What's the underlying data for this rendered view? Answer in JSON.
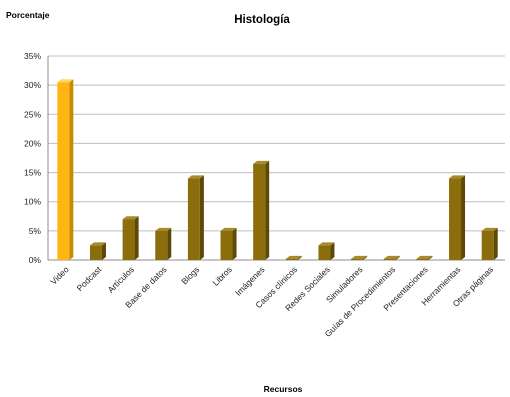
{
  "chart_data": {
    "type": "bar",
    "title": "Histología",
    "ylabel": "Porcentaje",
    "xlabel": "Recursos",
    "ylim": [
      0,
      35
    ],
    "yticks": [
      "0%",
      "5%",
      "10%",
      "15%",
      "20%",
      "25%",
      "30%",
      "35%"
    ],
    "grid": true,
    "categories": [
      "Video",
      "Podcast",
      "Artículos",
      "Base de datos",
      "Blogs",
      "Libros",
      "Imágenes",
      "Casos clínicos",
      "Redes Sociales",
      "Simuladores",
      "Guías de Procedimientos",
      "Presentaciones",
      "Herramientas",
      "Otras páginas"
    ],
    "values": [
      30.5,
      2.5,
      7,
      5,
      14,
      5,
      16.5,
      0.2,
      2.5,
      0.2,
      0.2,
      0.2,
      14,
      5
    ],
    "colors": {
      "highlight": "#FFB612",
      "highlight_side": "#C98A00",
      "highlight_top": "#FFD75A",
      "bar": "#8B6D0C",
      "bar_side": "#5E4805",
      "bar_top": "#A88A2A",
      "grid": "#BFBFBF",
      "axis": "#8C8C8C"
    }
  }
}
